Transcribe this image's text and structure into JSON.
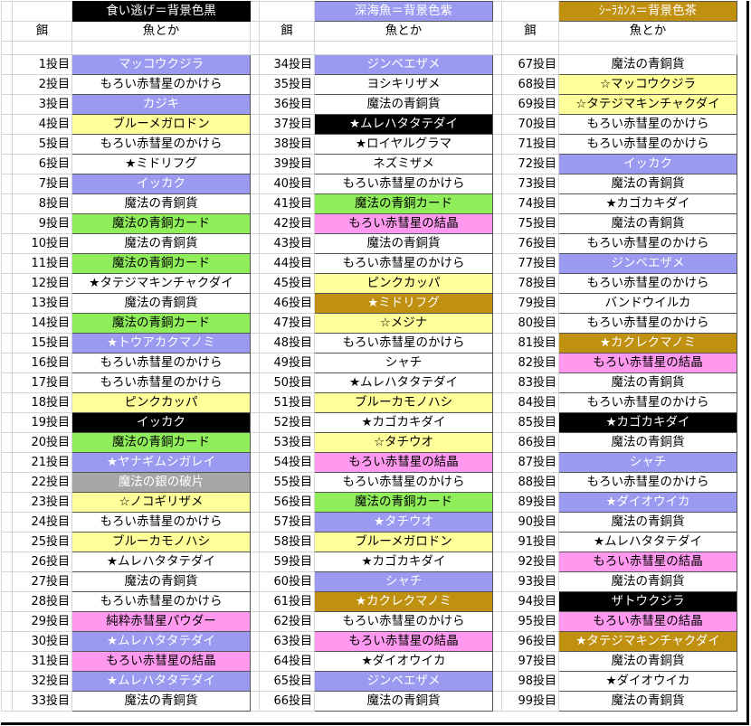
{
  "legend": {
    "escape": "食い逃げ＝背景色黒",
    "deep_sea": "深海魚＝背景色紫",
    "coelacanth": "ｼｰﾗｶﾝｽ＝背景色茶"
  },
  "headers": {
    "bait": "餌",
    "fish": "魚とか"
  },
  "colors": {
    "white": "#ffffff",
    "black": "#000000",
    "purple": "#9a9af0",
    "brown": "#c09010",
    "yellow": "#ffff99",
    "green": "#90ee5a",
    "pink": "#ff99f0",
    "gray": "#a6a6a6"
  },
  "columns": [
    [
      {
        "n": "1投目",
        "t": "マッコウクジラ",
        "c": "purple"
      },
      {
        "n": "2投目",
        "t": "もろい赤彗星のかけら",
        "c": "white"
      },
      {
        "n": "3投目",
        "t": "カジキ",
        "c": "purple"
      },
      {
        "n": "4投目",
        "t": "ブルーメガロドン",
        "c": "yellow"
      },
      {
        "n": "5投目",
        "t": "もろい赤彗星のかけら",
        "c": "white"
      },
      {
        "n": "6投目",
        "t": "★ミドリフグ",
        "c": "white"
      },
      {
        "n": "7投目",
        "t": "イッカク",
        "c": "purple"
      },
      {
        "n": "8投目",
        "t": "魔法の青銅貨",
        "c": "white"
      },
      {
        "n": "9投目",
        "t": "魔法の青銅カード",
        "c": "green"
      },
      {
        "n": "10投目",
        "t": "魔法の青銅貨",
        "c": "white"
      },
      {
        "n": "11投目",
        "t": "魔法の青銅カード",
        "c": "green"
      },
      {
        "n": "12投目",
        "t": "★タテジマキンチャクダイ",
        "c": "white"
      },
      {
        "n": "13投目",
        "t": "魔法の青銅貨",
        "c": "white"
      },
      {
        "n": "14投目",
        "t": "魔法の青銅カード",
        "c": "green"
      },
      {
        "n": "15投目",
        "t": "★トウアカクマノミ",
        "c": "purple"
      },
      {
        "n": "16投目",
        "t": "もろい赤彗星のかけら",
        "c": "white"
      },
      {
        "n": "17投目",
        "t": "もろい赤彗星のかけら",
        "c": "white"
      },
      {
        "n": "18投目",
        "t": "ピンクカッパ",
        "c": "yellow"
      },
      {
        "n": "19投目",
        "t": "イッカク",
        "c": "black"
      },
      {
        "n": "20投目",
        "t": "魔法の青銅カード",
        "c": "green"
      },
      {
        "n": "21投目",
        "t": "★ヤナギムシガレイ",
        "c": "purple"
      },
      {
        "n": "22投目",
        "t": "魔法の銀の破片",
        "c": "gray"
      },
      {
        "n": "23投目",
        "t": "☆ノコギリザメ",
        "c": "yellow"
      },
      {
        "n": "24投目",
        "t": "もろい赤彗星のかけら",
        "c": "white"
      },
      {
        "n": "25投目",
        "t": "ブルーカモノハシ",
        "c": "yellow"
      },
      {
        "n": "26投目",
        "t": "★ムレハタタテダイ",
        "c": "white"
      },
      {
        "n": "27投目",
        "t": "魔法の青銅貨",
        "c": "white"
      },
      {
        "n": "28投目",
        "t": "もろい赤彗星のかけら",
        "c": "white"
      },
      {
        "n": "29投目",
        "t": "純粋赤彗星パウダー",
        "c": "pink"
      },
      {
        "n": "30投目",
        "t": "★ムレハタタテダイ",
        "c": "purple"
      },
      {
        "n": "31投目",
        "t": "もろい赤彗星の結晶",
        "c": "pink"
      },
      {
        "n": "32投目",
        "t": "★ムレハタタテダイ",
        "c": "purple"
      },
      {
        "n": "33投目",
        "t": "魔法の青銅貨",
        "c": "white"
      }
    ],
    [
      {
        "n": "34投目",
        "t": "ジンベエザメ",
        "c": "purple"
      },
      {
        "n": "35投目",
        "t": "ヨシキリザメ",
        "c": "white"
      },
      {
        "n": "36投目",
        "t": "魔法の青銅貨",
        "c": "white"
      },
      {
        "n": "37投目",
        "t": "★ムレハタタテダイ",
        "c": "black"
      },
      {
        "n": "38投目",
        "t": "★ロイヤルグラマ",
        "c": "white"
      },
      {
        "n": "39投目",
        "t": "ネズミザメ",
        "c": "white"
      },
      {
        "n": "40投目",
        "t": "もろい赤彗星のかけら",
        "c": "white"
      },
      {
        "n": "41投目",
        "t": "魔法の青銅カード",
        "c": "green"
      },
      {
        "n": "42投目",
        "t": "もろい赤彗星の結晶",
        "c": "pink"
      },
      {
        "n": "43投目",
        "t": "魔法の青銅貨",
        "c": "white"
      },
      {
        "n": "44投目",
        "t": "もろい赤彗星のかけら",
        "c": "white"
      },
      {
        "n": "45投目",
        "t": "ピンクカッパ",
        "c": "yellow"
      },
      {
        "n": "46投目",
        "t": "★ミドリフグ",
        "c": "brown"
      },
      {
        "n": "47投目",
        "t": "☆メジナ",
        "c": "yellow"
      },
      {
        "n": "48投目",
        "t": "もろい赤彗星のかけら",
        "c": "white"
      },
      {
        "n": "49投目",
        "t": "シャチ",
        "c": "white"
      },
      {
        "n": "50投目",
        "t": "★ムレハタタテダイ",
        "c": "white"
      },
      {
        "n": "51投目",
        "t": "ブルーカモノハシ",
        "c": "yellow"
      },
      {
        "n": "52投目",
        "t": "★カゴカキダイ",
        "c": "white"
      },
      {
        "n": "53投目",
        "t": "☆タチウオ",
        "c": "yellow"
      },
      {
        "n": "54投目",
        "t": "もろい赤彗星の結晶",
        "c": "pink"
      },
      {
        "n": "55投目",
        "t": "もろい赤彗星のかけら",
        "c": "white"
      },
      {
        "n": "56投目",
        "t": "魔法の青銅カード",
        "c": "green"
      },
      {
        "n": "57投目",
        "t": "★タチウオ",
        "c": "purple"
      },
      {
        "n": "58投目",
        "t": "ブルーメガロドン",
        "c": "yellow"
      },
      {
        "n": "59投目",
        "t": "★カゴカキダイ",
        "c": "white"
      },
      {
        "n": "60投目",
        "t": "シャチ",
        "c": "purple"
      },
      {
        "n": "61投目",
        "t": "★カクレクマノミ",
        "c": "brown"
      },
      {
        "n": "62投目",
        "t": "もろい赤彗星のかけら",
        "c": "white"
      },
      {
        "n": "63投目",
        "t": "もろい赤彗星の結晶",
        "c": "pink"
      },
      {
        "n": "64投目",
        "t": "★ダイオウイカ",
        "c": "white"
      },
      {
        "n": "65投目",
        "t": "ジンベエザメ",
        "c": "purple"
      },
      {
        "n": "66投目",
        "t": "魔法の青銅貨",
        "c": "white"
      }
    ],
    [
      {
        "n": "67投目",
        "t": "魔法の青銅貨",
        "c": "white"
      },
      {
        "n": "68投目",
        "t": "☆マッコウクジラ",
        "c": "yellow"
      },
      {
        "n": "69投目",
        "t": "☆タテジマキンチャクダイ",
        "c": "yellow"
      },
      {
        "n": "70投目",
        "t": "もろい赤彗星のかけら",
        "c": "white"
      },
      {
        "n": "71投目",
        "t": "もろい赤彗星のかけら",
        "c": "white"
      },
      {
        "n": "72投目",
        "t": "イッカク",
        "c": "purple"
      },
      {
        "n": "73投目",
        "t": "魔法の青銅貨",
        "c": "white"
      },
      {
        "n": "74投目",
        "t": "★カゴカキダイ",
        "c": "white"
      },
      {
        "n": "75投目",
        "t": "魔法の青銅貨",
        "c": "white"
      },
      {
        "n": "76投目",
        "t": "もろい赤彗星のかけら",
        "c": "white"
      },
      {
        "n": "77投目",
        "t": "ジンベエザメ",
        "c": "purple"
      },
      {
        "n": "78投目",
        "t": "もろい赤彗星のかけら",
        "c": "white"
      },
      {
        "n": "79投目",
        "t": "バンドウイルカ",
        "c": "white"
      },
      {
        "n": "80投目",
        "t": "もろい赤彗星のかけら",
        "c": "white"
      },
      {
        "n": "81投目",
        "t": "★カクレクマノミ",
        "c": "brown"
      },
      {
        "n": "82投目",
        "t": "もろい赤彗星の結晶",
        "c": "pink"
      },
      {
        "n": "83投目",
        "t": "魔法の青銅貨",
        "c": "white"
      },
      {
        "n": "84投目",
        "t": "もろい赤彗星のかけら",
        "c": "white"
      },
      {
        "n": "85投目",
        "t": "★カゴカキダイ",
        "c": "black"
      },
      {
        "n": "86投目",
        "t": "魔法の青銅貨",
        "c": "white"
      },
      {
        "n": "87投目",
        "t": "シャチ",
        "c": "purple"
      },
      {
        "n": "88投目",
        "t": "もろい赤彗星のかけら",
        "c": "white"
      },
      {
        "n": "89投目",
        "t": "★ダイオウイカ",
        "c": "purple"
      },
      {
        "n": "90投目",
        "t": "魔法の青銅貨",
        "c": "white"
      },
      {
        "n": "91投目",
        "t": "★ムレハタタテダイ",
        "c": "white"
      },
      {
        "n": "92投目",
        "t": "もろい赤彗星の結晶",
        "c": "pink"
      },
      {
        "n": "93投目",
        "t": "魔法の青銅貨",
        "c": "white"
      },
      {
        "n": "94投目",
        "t": "ザトウクジラ",
        "c": "black"
      },
      {
        "n": "95投目",
        "t": "もろい赤彗星の結晶",
        "c": "pink"
      },
      {
        "n": "96投目",
        "t": "★タテジマキンチャクダイ",
        "c": "brown"
      },
      {
        "n": "97投目",
        "t": "魔法の青銅貨",
        "c": "white"
      },
      {
        "n": "98投目",
        "t": "★ダイオウイカ",
        "c": "white"
      },
      {
        "n": "99投目",
        "t": "魔法の青銅貨",
        "c": "white"
      }
    ]
  ]
}
